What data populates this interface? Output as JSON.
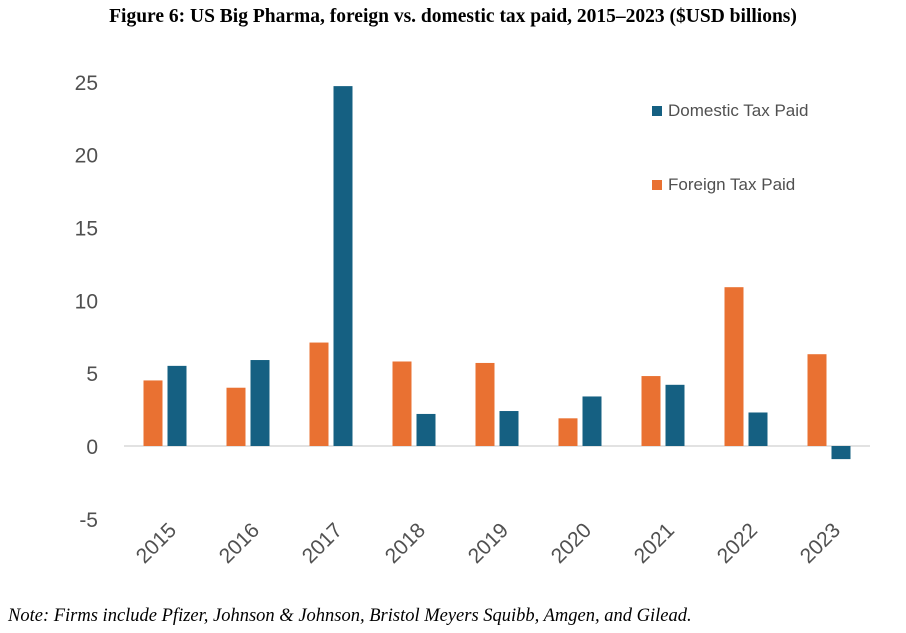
{
  "chart_data": {
    "type": "bar",
    "title": "Figure 6: US Big Pharma, foreign vs. domestic tax paid, 2015–2023 ($USD billions)",
    "note": "Note: Firms include Pfizer, Johnson & Johnson, Bristol Meyers Squibb, Amgen, and Gilead.",
    "categories": [
      "2015",
      "2016",
      "2017",
      "2018",
      "2019",
      "2020",
      "2021",
      "2022",
      "2023"
    ],
    "series": [
      {
        "name": "Foreign Tax Paid",
        "color": "#E97132",
        "values": [
          4.5,
          4.0,
          7.1,
          5.8,
          5.7,
          1.9,
          4.8,
          10.9,
          6.3
        ]
      },
      {
        "name": "Domestic Tax Paid",
        "color": "#156082",
        "values": [
          5.5,
          5.9,
          24.7,
          2.2,
          2.4,
          3.4,
          4.2,
          2.3,
          -0.9
        ]
      }
    ],
    "ylim": [
      -5,
      25
    ],
    "yticks": [
      "-5",
      "0",
      "5",
      "10",
      "15",
      "20",
      "25"
    ],
    "legend_order": [
      "Domestic Tax Paid",
      "Foreign Tax Paid"
    ],
    "legend_position": "top-right",
    "grid": false
  }
}
